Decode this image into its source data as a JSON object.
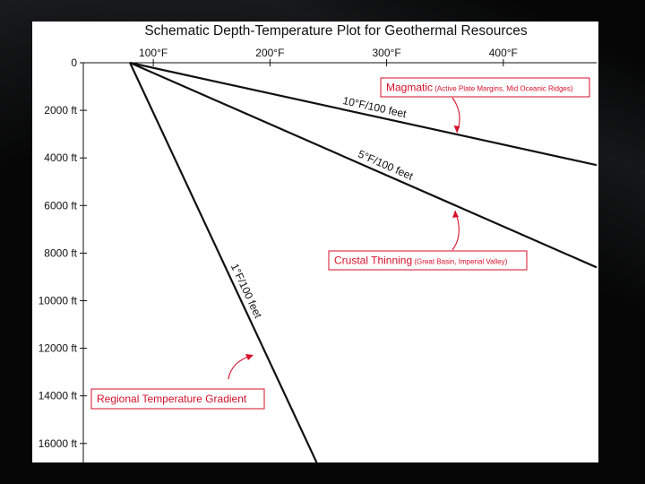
{
  "chart_data": {
    "type": "line",
    "title": "Schematic Depth-Temperature Plot for Geothermal Resources",
    "x_tick_labels": [
      "100°F",
      "200°F",
      "300°F",
      "400°F"
    ],
    "x_ticks": [
      100,
      200,
      300,
      400
    ],
    "xlim": [
      40,
      480
    ],
    "y_tick_labels": [
      "0",
      "2000 ft",
      "4000 ft",
      "6000 ft",
      "8000 ft",
      "10000 ft",
      "12000 ft",
      "14000 ft",
      "16000 ft"
    ],
    "y_ticks": [
      0,
      2000,
      4000,
      6000,
      8000,
      10000,
      12000,
      14000,
      16000
    ],
    "ylim": [
      0,
      16800
    ],
    "y_inverted": true,
    "series": [
      {
        "name": "10°F/100 feet",
        "x": [
          80,
          480
        ],
        "y": [
          0,
          4300
        ]
      },
      {
        "name": "5°F/100 feet",
        "x": [
          80,
          480
        ],
        "y": [
          0,
          8600
        ]
      },
      {
        "name": "1°F/100 feet",
        "x": [
          80,
          240
        ],
        "y": [
          0,
          16800
        ]
      }
    ],
    "annotations": [
      {
        "main": "Magmatic",
        "sub": "(Active Plate Margins, Mid Oceanic Ridges)"
      },
      {
        "main": "Crustal Thinning",
        "sub": "(Great Basin, Imperial Valley)"
      },
      {
        "main": "Regional Temperature Gradient",
        "sub": ""
      }
    ],
    "colors": {
      "lines": "#111111",
      "annotation": "#d6112a"
    }
  }
}
